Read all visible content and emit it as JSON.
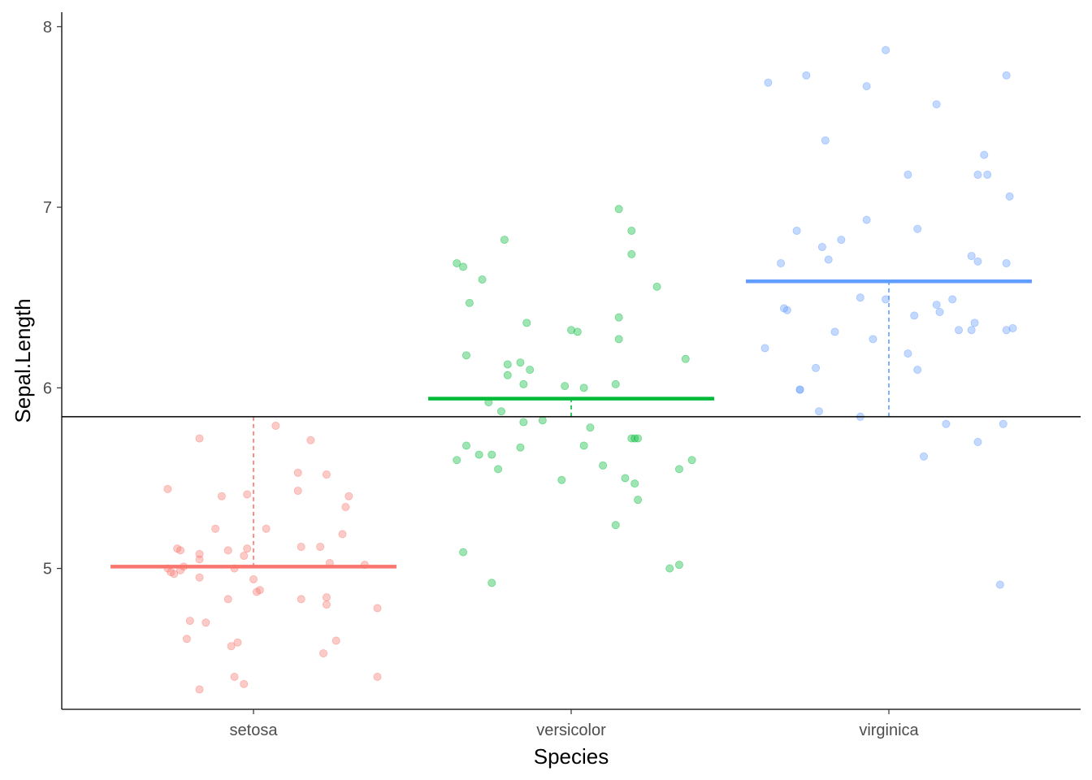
{
  "chart_data": {
    "type": "scatter",
    "subtype": "jitter strip plot with group means",
    "xlabel": "Species",
    "ylabel": "Sepal.Length",
    "categories": [
      "setosa",
      "versicolor",
      "virginica"
    ],
    "ylim": [
      4.22,
      8.08
    ],
    "yticks": [
      5,
      6,
      7,
      8
    ],
    "grid": false,
    "legend": "none",
    "overall_mean": 5.84,
    "colors": {
      "setosa": "#F8766D",
      "versicolor": "#00BA38",
      "virginica": "#619CFF",
      "overall_line": "#000000"
    },
    "series": [
      {
        "category": "setosa",
        "mean": 5.01,
        "points": [
          {
            "x": -0.27,
            "y": 5.44
          },
          {
            "x": -0.27,
            "y": 5.0
          },
          {
            "x": -0.26,
            "y": 4.98
          },
          {
            "x": -0.25,
            "y": 4.97
          },
          {
            "x": -0.24,
            "y": 5.11
          },
          {
            "x": -0.23,
            "y": 5.1
          },
          {
            "x": -0.23,
            "y": 4.99
          },
          {
            "x": -0.22,
            "y": 5.01
          },
          {
            "x": -0.21,
            "y": 4.61
          },
          {
            "x": -0.2,
            "y": 4.71
          },
          {
            "x": -0.17,
            "y": 4.33
          },
          {
            "x": -0.17,
            "y": 5.05
          },
          {
            "x": -0.17,
            "y": 5.08
          },
          {
            "x": -0.17,
            "y": 4.95
          },
          {
            "x": -0.17,
            "y": 5.72
          },
          {
            "x": -0.15,
            "y": 4.7
          },
          {
            "x": -0.12,
            "y": 5.22
          },
          {
            "x": -0.1,
            "y": 5.4
          },
          {
            "x": -0.08,
            "y": 5.1
          },
          {
            "x": -0.08,
            "y": 4.83
          },
          {
            "x": -0.07,
            "y": 4.57
          },
          {
            "x": -0.06,
            "y": 5.0
          },
          {
            "x": -0.06,
            "y": 4.4
          },
          {
            "x": -0.05,
            "y": 4.59
          },
          {
            "x": -0.03,
            "y": 5.07
          },
          {
            "x": -0.03,
            "y": 4.36
          },
          {
            "x": -0.02,
            "y": 5.41
          },
          {
            "x": -0.02,
            "y": 5.11
          },
          {
            "x": 0.0,
            "y": 4.94
          },
          {
            "x": 0.01,
            "y": 4.87
          },
          {
            "x": 0.02,
            "y": 4.88
          },
          {
            "x": 0.04,
            "y": 5.22
          },
          {
            "x": 0.07,
            "y": 5.79
          },
          {
            "x": 0.14,
            "y": 5.53
          },
          {
            "x": 0.14,
            "y": 5.43
          },
          {
            "x": 0.15,
            "y": 5.12
          },
          {
            "x": 0.15,
            "y": 4.83
          },
          {
            "x": 0.18,
            "y": 5.71
          },
          {
            "x": 0.21,
            "y": 5.12
          },
          {
            "x": 0.22,
            "y": 4.53
          },
          {
            "x": 0.23,
            "y": 5.52
          },
          {
            "x": 0.23,
            "y": 4.84
          },
          {
            "x": 0.23,
            "y": 4.8
          },
          {
            "x": 0.24,
            "y": 5.03
          },
          {
            "x": 0.26,
            "y": 4.6
          },
          {
            "x": 0.28,
            "y": 5.19
          },
          {
            "x": 0.29,
            "y": 5.34
          },
          {
            "x": 0.3,
            "y": 5.4
          },
          {
            "x": 0.35,
            "y": 5.02
          },
          {
            "x": 0.39,
            "y": 4.78
          },
          {
            "x": 0.39,
            "y": 4.4
          }
        ]
      },
      {
        "category": "versicolor",
        "mean": 5.94,
        "points": [
          {
            "x": -0.36,
            "y": 6.69
          },
          {
            "x": -0.36,
            "y": 5.6
          },
          {
            "x": -0.34,
            "y": 6.67
          },
          {
            "x": -0.34,
            "y": 5.09
          },
          {
            "x": -0.33,
            "y": 5.68
          },
          {
            "x": -0.33,
            "y": 6.18
          },
          {
            "x": -0.32,
            "y": 6.47
          },
          {
            "x": -0.29,
            "y": 5.63
          },
          {
            "x": -0.28,
            "y": 6.6
          },
          {
            "x": -0.26,
            "y": 5.92
          },
          {
            "x": -0.25,
            "y": 4.92
          },
          {
            "x": -0.25,
            "y": 5.63
          },
          {
            "x": -0.23,
            "y": 5.55
          },
          {
            "x": -0.22,
            "y": 5.87
          },
          {
            "x": -0.21,
            "y": 6.82
          },
          {
            "x": -0.2,
            "y": 6.07
          },
          {
            "x": -0.2,
            "y": 6.13
          },
          {
            "x": -0.16,
            "y": 5.67
          },
          {
            "x": -0.16,
            "y": 6.14
          },
          {
            "x": -0.15,
            "y": 6.02
          },
          {
            "x": -0.15,
            "y": 5.81
          },
          {
            "x": -0.14,
            "y": 6.36
          },
          {
            "x": -0.13,
            "y": 6.1
          },
          {
            "x": -0.09,
            "y": 5.82
          },
          {
            "x": -0.03,
            "y": 5.49
          },
          {
            "x": -0.02,
            "y": 6.01
          },
          {
            "x": 0.0,
            "y": 6.32
          },
          {
            "x": 0.02,
            "y": 6.31
          },
          {
            "x": 0.04,
            "y": 5.68
          },
          {
            "x": 0.04,
            "y": 6.0
          },
          {
            "x": 0.06,
            "y": 5.78
          },
          {
            "x": 0.1,
            "y": 5.57
          },
          {
            "x": 0.14,
            "y": 6.02
          },
          {
            "x": 0.14,
            "y": 5.24
          },
          {
            "x": 0.15,
            "y": 6.39
          },
          {
            "x": 0.15,
            "y": 6.27
          },
          {
            "x": 0.15,
            "y": 6.99
          },
          {
            "x": 0.17,
            "y": 5.5
          },
          {
            "x": 0.19,
            "y": 6.74
          },
          {
            "x": 0.19,
            "y": 6.87
          },
          {
            "x": 0.19,
            "y": 5.72
          },
          {
            "x": 0.2,
            "y": 5.72
          },
          {
            "x": 0.2,
            "y": 5.47
          },
          {
            "x": 0.21,
            "y": 5.72
          },
          {
            "x": 0.21,
            "y": 5.38
          },
          {
            "x": 0.27,
            "y": 6.56
          },
          {
            "x": 0.31,
            "y": 5.0
          },
          {
            "x": 0.34,
            "y": 5.02
          },
          {
            "x": 0.34,
            "y": 5.55
          },
          {
            "x": 0.36,
            "y": 6.16
          },
          {
            "x": 0.38,
            "y": 5.6
          }
        ]
      },
      {
        "category": "virginica",
        "mean": 6.59,
        "points": [
          {
            "x": -0.39,
            "y": 6.22
          },
          {
            "x": -0.38,
            "y": 7.69
          },
          {
            "x": -0.34,
            "y": 6.69
          },
          {
            "x": -0.33,
            "y": 6.44
          },
          {
            "x": -0.32,
            "y": 6.43
          },
          {
            "x": -0.29,
            "y": 6.87
          },
          {
            "x": -0.28,
            "y": 5.99
          },
          {
            "x": -0.28,
            "y": 5.99
          },
          {
            "x": -0.26,
            "y": 7.73
          },
          {
            "x": -0.23,
            "y": 6.11
          },
          {
            "x": -0.22,
            "y": 5.87
          },
          {
            "x": -0.21,
            "y": 6.78
          },
          {
            "x": -0.2,
            "y": 7.37
          },
          {
            "x": -0.19,
            "y": 6.71
          },
          {
            "x": -0.17,
            "y": 6.31
          },
          {
            "x": -0.15,
            "y": 6.82
          },
          {
            "x": -0.09,
            "y": 6.5
          },
          {
            "x": -0.09,
            "y": 5.84
          },
          {
            "x": -0.07,
            "y": 6.93
          },
          {
            "x": -0.07,
            "y": 7.67
          },
          {
            "x": -0.05,
            "y": 6.27
          },
          {
            "x": -0.01,
            "y": 6.49
          },
          {
            "x": -0.01,
            "y": 7.87
          },
          {
            "x": 0.06,
            "y": 7.18
          },
          {
            "x": 0.06,
            "y": 6.19
          },
          {
            "x": 0.08,
            "y": 6.4
          },
          {
            "x": 0.09,
            "y": 6.88
          },
          {
            "x": 0.09,
            "y": 6.1
          },
          {
            "x": 0.11,
            "y": 5.62
          },
          {
            "x": 0.15,
            "y": 6.46
          },
          {
            "x": 0.16,
            "y": 6.42
          },
          {
            "x": 0.15,
            "y": 7.57
          },
          {
            "x": 0.18,
            "y": 5.8
          },
          {
            "x": 0.2,
            "y": 6.49
          },
          {
            "x": 0.22,
            "y": 6.32
          },
          {
            "x": 0.26,
            "y": 6.73
          },
          {
            "x": 0.26,
            "y": 6.32
          },
          {
            "x": 0.27,
            "y": 6.36
          },
          {
            "x": 0.28,
            "y": 7.18
          },
          {
            "x": 0.28,
            "y": 6.7
          },
          {
            "x": 0.28,
            "y": 5.7
          },
          {
            "x": 0.3,
            "y": 7.29
          },
          {
            "x": 0.31,
            "y": 7.18
          },
          {
            "x": 0.35,
            "y": 4.91
          },
          {
            "x": 0.36,
            "y": 5.8
          },
          {
            "x": 0.37,
            "y": 6.69
          },
          {
            "x": 0.37,
            "y": 6.32
          },
          {
            "x": 0.37,
            "y": 7.73
          },
          {
            "x": 0.38,
            "y": 7.06
          },
          {
            "x": 0.39,
            "y": 6.33
          }
        ]
      }
    ]
  }
}
